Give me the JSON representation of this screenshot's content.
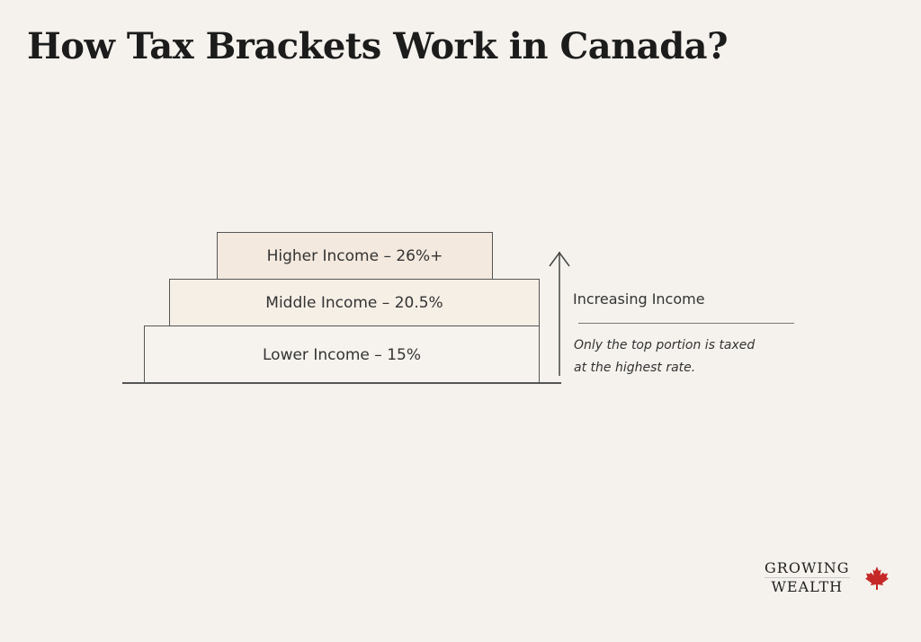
{
  "title": "How Tax Brackets Work in Canada?",
  "brackets": [
    {
      "label": "Higher Income – 26%+",
      "fill": "#f3e9de"
    },
    {
      "label": "Middle Income – 20.5%",
      "fill": "#f6efe6"
    },
    {
      "label": "Lower Income – 15%",
      "fill": "#f6f3ee"
    }
  ],
  "arrow": {
    "label": "Increasing Income",
    "icon": "arrow-up-icon"
  },
  "note": {
    "line1": "Only the top portion is taxed",
    "line2": "at the highest rate."
  },
  "logo": {
    "line1": "GROWING",
    "line2": "WEALTH",
    "icon": "maple-leaf-icon",
    "leaf_color": "#c62828"
  }
}
